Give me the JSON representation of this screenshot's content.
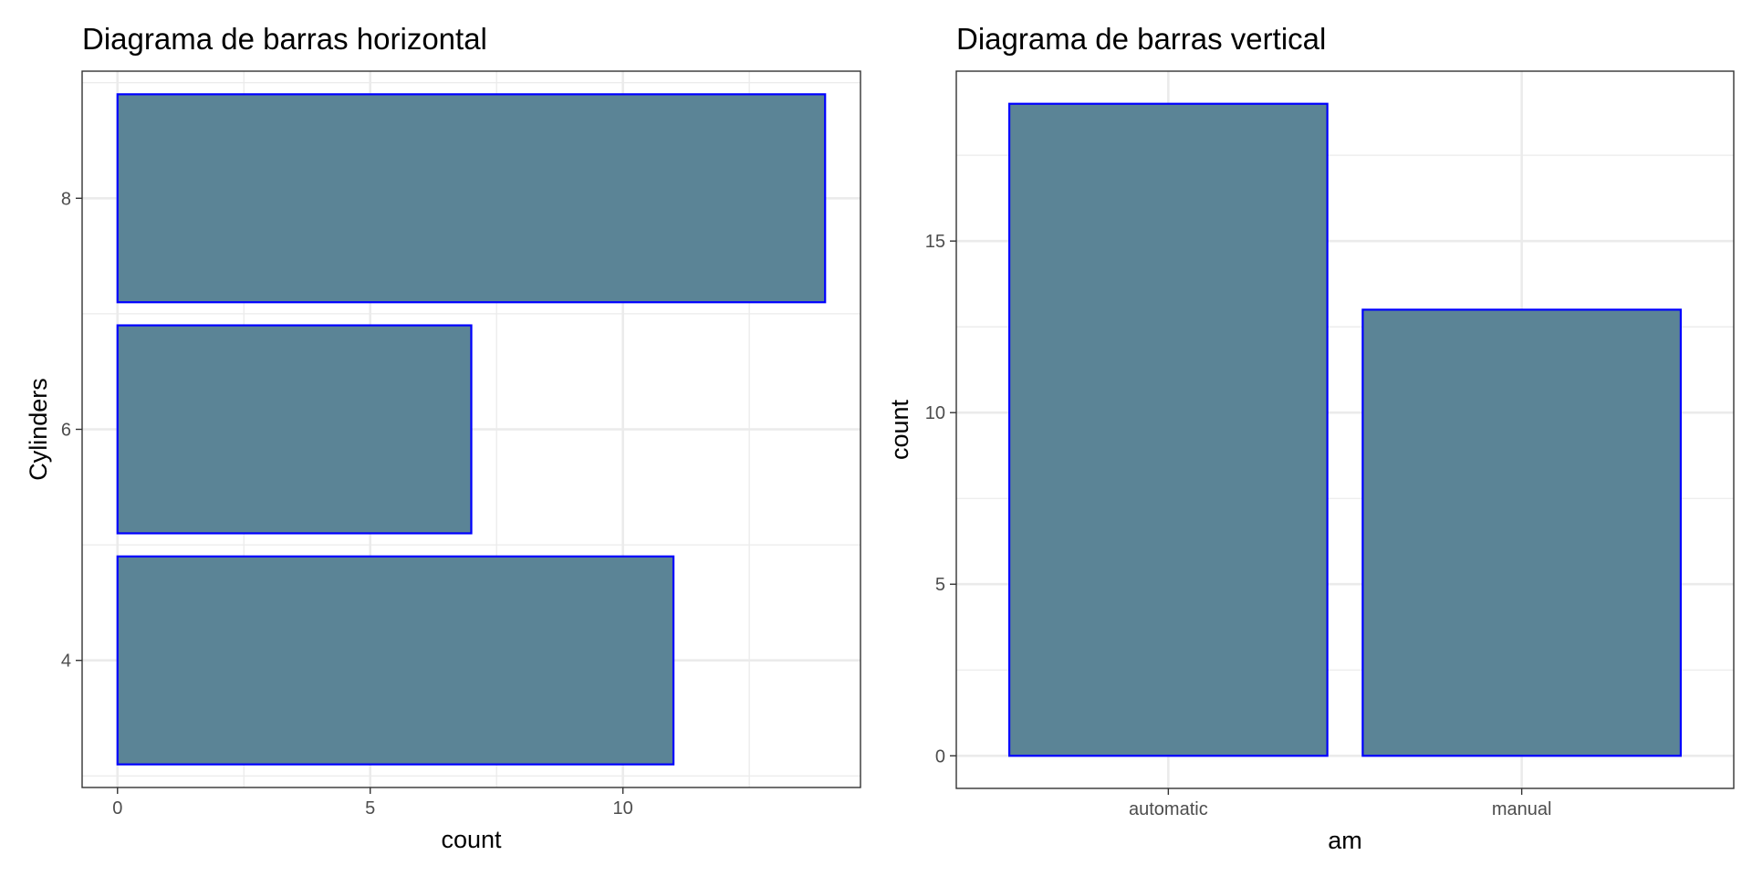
{
  "style": {
    "bar_fill": "#5b8496",
    "bar_stroke": "#0000ff",
    "panel_bg": "#ffffff",
    "grid_color": "#ebebeb",
    "border_color": "#333333"
  },
  "chart_data": [
    {
      "type": "bar",
      "orientation": "horizontal",
      "title": "Diagrama de barras horizontal",
      "xlabel": "count",
      "ylabel": "Cylinders",
      "categories": [
        4,
        6,
        8
      ],
      "values": [
        11,
        7,
        14
      ],
      "xlim": [
        -0.7,
        14.7
      ],
      "ylim": [
        2.9,
        9.1
      ],
      "x_ticks": [
        0,
        5,
        10
      ],
      "x_minor_ticks": [
        2.5,
        7.5,
        12.5
      ],
      "y_ticks": [
        4,
        6,
        8
      ],
      "y_minor_ticks": [
        3,
        5,
        7,
        9
      ],
      "grid": true,
      "legend": "none"
    },
    {
      "type": "bar",
      "orientation": "vertical",
      "title": "Diagrama de barras vertical",
      "xlabel": "am",
      "ylabel": "count",
      "categories": [
        "automatic",
        "manual"
      ],
      "values": [
        19,
        13
      ],
      "ylim": [
        -0.95,
        19.95
      ],
      "y_ticks": [
        0,
        5,
        10,
        15
      ],
      "y_minor_ticks": [
        2.5,
        7.5,
        12.5,
        17.5
      ],
      "grid": true,
      "legend": "none"
    }
  ]
}
